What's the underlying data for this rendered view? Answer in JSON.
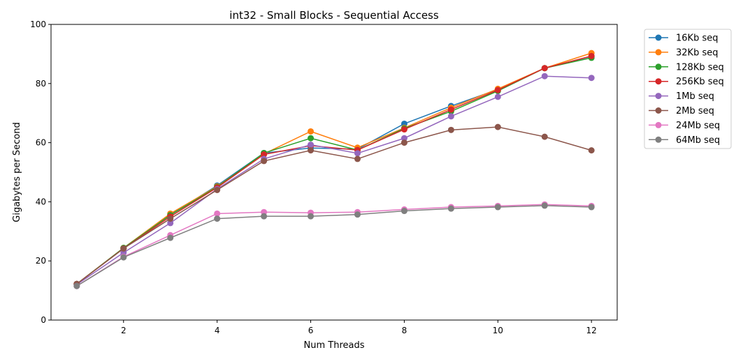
{
  "chart_data": {
    "type": "line",
    "title": "int32 - Small Blocks - Sequential Access",
    "xlabel": "Num Threads",
    "ylabel": "Gigabytes per Second",
    "xlim": [
      0.45,
      12.55
    ],
    "ylim": [
      0,
      100
    ],
    "xticks": [
      2,
      4,
      6,
      8,
      10,
      12
    ],
    "yticks": [
      0,
      20,
      40,
      60,
      80,
      100
    ],
    "grid": false,
    "legend_position": "outside-top-right",
    "x": [
      1,
      2,
      3,
      4,
      5,
      6,
      7,
      8,
      9,
      10,
      11,
      12
    ],
    "series": [
      {
        "name": "16Kb seq",
        "color": "#1f77b4",
        "values": [
          12.2,
          24.3,
          35.6,
          45.5,
          56.5,
          58.2,
          57.8,
          66.4,
          72.4,
          78.0,
          85.2,
          89.2
        ]
      },
      {
        "name": "32Kb seq",
        "color": "#ff7f0e",
        "values": [
          12.2,
          24.4,
          36.0,
          45.2,
          56.2,
          63.8,
          58.3,
          65.0,
          71.8,
          78.2,
          85.2,
          90.3
        ]
      },
      {
        "name": "128Kb seq",
        "color": "#2ca02c",
        "values": [
          12.2,
          24.4,
          35.5,
          45.0,
          56.5,
          61.5,
          57.5,
          64.8,
          70.6,
          77.5,
          85.2,
          88.7
        ]
      },
      {
        "name": "256Kb seq",
        "color": "#d62728",
        "values": [
          12.2,
          24.2,
          35.0,
          44.8,
          56.0,
          59.0,
          57.5,
          64.5,
          71.2,
          77.8,
          85.2,
          89.3
        ]
      },
      {
        "name": "1Mb seq",
        "color": "#9467bd",
        "values": [
          12.0,
          22.8,
          32.8,
          44.3,
          54.5,
          59.3,
          56.4,
          61.5,
          68.9,
          75.5,
          82.5,
          81.9
        ]
      },
      {
        "name": "2Mb seq",
        "color": "#8c564b",
        "values": [
          12.2,
          24.2,
          34.3,
          44.0,
          53.8,
          57.4,
          54.5,
          60.0,
          64.3,
          65.3,
          62.0,
          57.4
        ]
      },
      {
        "name": "24Mb seq",
        "color": "#e377c2",
        "values": [
          11.5,
          21.4,
          28.7,
          36.0,
          36.5,
          36.3,
          36.5,
          37.4,
          38.2,
          38.6,
          39.1,
          38.6
        ]
      },
      {
        "name": "64Mb seq",
        "color": "#7f7f7f",
        "values": [
          11.5,
          21.2,
          27.8,
          34.3,
          35.1,
          35.1,
          35.7,
          36.9,
          37.7,
          38.2,
          38.7,
          38.2
        ]
      }
    ]
  }
}
